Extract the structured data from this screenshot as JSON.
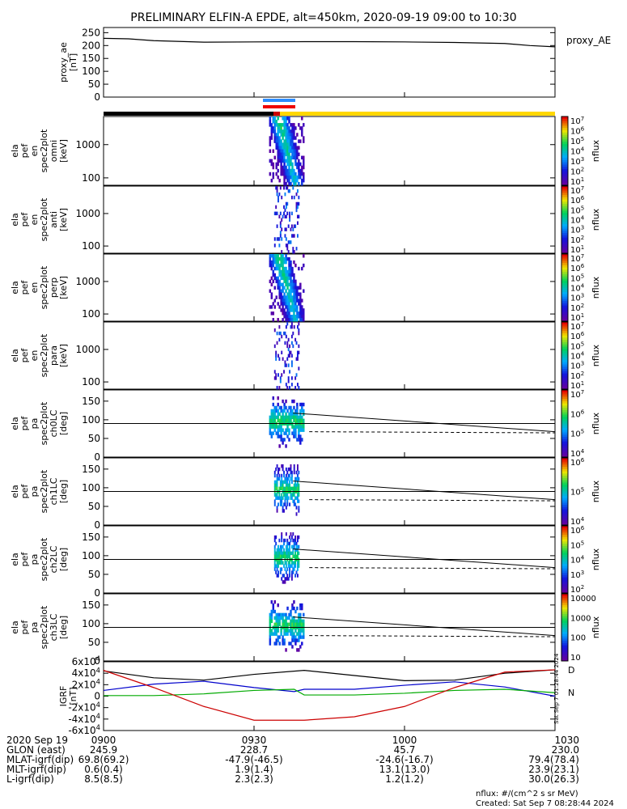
{
  "title": "PRELIMINARY ELFIN-A EPDE, alt=450km, 2020-09-19 09:00 to 10:30",
  "x_axis": {
    "date": "2020 Sep 19",
    "ticks": [
      "0900",
      "0930",
      "1000",
      "1030"
    ],
    "rows": [
      {
        "label": "GLON (east)",
        "values": [
          "245.9",
          "228.7",
          "45.7",
          "230.0"
        ]
      },
      {
        "label": "MLAT-igrf(dip)",
        "values": [
          "69.8(69.2)",
          "-47.9(-46.5)",
          "-24.6(-16.7)",
          "79.4(78.4)"
        ]
      },
      {
        "label": "MLT-igrf(dip)",
        "values": [
          "0.6(0.4)",
          "1.9(1.4)",
          "13.1(13.0)",
          "23.9(23.1)"
        ]
      },
      {
        "label": "L-igrf(dip)",
        "values": [
          "8.5(8.5)",
          "2.3(2.3)",
          "1.2(1.2)",
          "30.0(26.3)"
        ]
      }
    ]
  },
  "footer": {
    "units": "nflux: #/(cm^2 s sr MeV)",
    "created": "Created: Sat Sep  7 08:28:44 2024",
    "side_stamp": "Sat Sep  7 01:28:44 2024"
  },
  "chart_data": [
    {
      "type": "line",
      "ylabel": [
        "proxy_ae",
        "[nT]"
      ],
      "legend": "proxy_AE",
      "yticks": [
        "250",
        "200",
        "150",
        "100",
        "50",
        "0"
      ],
      "ylim": [
        0,
        270
      ],
      "series": [
        {
          "name": "proxy_AE",
          "color": "#000000",
          "x": [
            0,
            5,
            10,
            20,
            30,
            40,
            50,
            60,
            70,
            80,
            85,
            90
          ],
          "values": [
            228,
            226,
            219,
            213,
            214,
            215,
            215,
            214,
            212,
            208,
            200,
            195
          ]
        }
      ]
    },
    {
      "type": "bar",
      "ylabel": [
        "ela",
        "pef",
        "en",
        "spec2plot",
        "omni",
        "[keV]"
      ],
      "yticks": [
        "1000",
        "100"
      ],
      "ylim": [
        60,
        7000
      ],
      "colorbar": {
        "label": "nflux",
        "ticks": [
          "10^7",
          "10^6",
          "10^5",
          "10^4",
          "10^3",
          "10^2",
          "10^1"
        ]
      },
      "activity": {
        "x_minutes": [
          33,
          40
        ],
        "peak": "intense"
      }
    },
    {
      "type": "bar",
      "ylabel": [
        "ela",
        "pef",
        "en",
        "spec2plot",
        "anti",
        "[keV]"
      ],
      "yticks": [
        "1000",
        "100"
      ],
      "ylim": [
        60,
        7000
      ],
      "colorbar": {
        "label": "nflux",
        "ticks": [
          "10^7",
          "10^6",
          "10^5",
          "10^4",
          "10^3",
          "10^2",
          "10^1"
        ]
      },
      "activity": {
        "x_minutes": [
          34,
          39
        ],
        "peak": "weak"
      }
    },
    {
      "type": "bar",
      "ylabel": [
        "ela",
        "pef",
        "en",
        "spec2plot",
        "perp",
        "[keV]"
      ],
      "yticks": [
        "1000",
        "100"
      ],
      "ylim": [
        60,
        7000
      ],
      "colorbar": {
        "label": "nflux",
        "ticks": [
          "10^7",
          "10^6",
          "10^5",
          "10^4",
          "10^3",
          "10^2",
          "10^1"
        ]
      },
      "activity": {
        "x_minutes": [
          33,
          40
        ],
        "peak": "intense"
      }
    },
    {
      "type": "bar",
      "ylabel": [
        "ela",
        "pef",
        "en",
        "spec2plot",
        "para",
        "[keV]"
      ],
      "yticks": [
        "1000",
        "100"
      ],
      "ylim": [
        60,
        7000
      ],
      "colorbar": {
        "label": "nflux",
        "ticks": [
          "10^7",
          "10^6",
          "10^5",
          "10^4",
          "10^3",
          "10^2",
          "10^1"
        ]
      },
      "activity": {
        "x_minutes": [
          34,
          39
        ],
        "peak": "weak"
      }
    },
    {
      "type": "bar",
      "ylabel": [
        "ela",
        "pef",
        "pa",
        "spec2plot",
        "ch0LC",
        "[deg]"
      ],
      "yticks": [
        "150",
        "100",
        "50",
        "0"
      ],
      "ylim": [
        0,
        180
      ],
      "colorbar": {
        "label": "nflux",
        "ticks": [
          "10^7",
          "10^6",
          "10^5",
          "10^4"
        ]
      },
      "lines": {
        "lc_start": 118,
        "lc_end": 68,
        "alc_start": 68,
        "alc_end": 65,
        "ref": 90
      },
      "activity": {
        "x_minutes": [
          33,
          40
        ],
        "peak": "intense"
      }
    },
    {
      "type": "bar",
      "ylabel": [
        "ela",
        "pef",
        "pa",
        "spec2plot",
        "ch1LC",
        "[deg]"
      ],
      "yticks": [
        "150",
        "100",
        "50",
        "0"
      ],
      "ylim": [
        0,
        180
      ],
      "colorbar": {
        "label": "nflux",
        "ticks": [
          "10^6",
          "10^5",
          "10^4"
        ]
      },
      "lines": {
        "lc_start": 118,
        "lc_end": 68,
        "alc_start": 68,
        "alc_end": 65,
        "ref": 90
      },
      "activity": {
        "x_minutes": [
          34,
          39
        ],
        "peak": "intense"
      }
    },
    {
      "type": "bar",
      "ylabel": [
        "ela",
        "pef",
        "pa",
        "spec2plot",
        "ch2LC",
        "[deg]"
      ],
      "yticks": [
        "150",
        "100",
        "50",
        "0"
      ],
      "ylim": [
        0,
        180
      ],
      "colorbar": {
        "label": "nflux",
        "ticks": [
          "10^6",
          "10^5",
          "10^4",
          "10^3",
          "10^2"
        ]
      },
      "lines": {
        "lc_start": 118,
        "lc_end": 68,
        "alc_start": 68,
        "alc_end": 65,
        "ref": 90
      },
      "activity": {
        "x_minutes": [
          34,
          39
        ],
        "peak": "intense"
      }
    },
    {
      "type": "bar",
      "ylabel": [
        "ela",
        "pef",
        "pa",
        "spec2plot",
        "ch3LC",
        "[deg]"
      ],
      "yticks": [
        "150",
        "100",
        "50",
        "0"
      ],
      "ylim": [
        0,
        180
      ],
      "colorbar": {
        "label": "nflux",
        "ticks": [
          "10000",
          "1000",
          "100",
          "10"
        ]
      },
      "lines": {
        "lc_start": 118,
        "lc_end": 68,
        "alc_start": 68,
        "alc_end": 65,
        "ref": 90
      },
      "activity": {
        "x_minutes": [
          33,
          40
        ],
        "peak": "intense"
      }
    },
    {
      "type": "line",
      "ylabel": [
        "IGRF",
        "[nT]"
      ],
      "yticks": [
        "6x10^4",
        "4x10^4",
        "2x10^4",
        "0",
        "-2x10^4",
        "-4x10^4",
        "-6x10^4"
      ],
      "ylim": [
        -60000,
        60000
      ],
      "legend_labels": [
        "D",
        "N"
      ],
      "series": [
        {
          "name": "black",
          "color": "#000000",
          "x": [
            0,
            10,
            20,
            30,
            40,
            50,
            60,
            70,
            80,
            90
          ],
          "values": [
            44000,
            32000,
            28000,
            38000,
            45000,
            36000,
            27000,
            28000,
            40000,
            46000
          ]
        },
        {
          "name": "blue",
          "color": "#0000cc",
          "x": [
            0,
            10,
            20,
            30,
            38,
            40,
            50,
            60,
            70,
            80,
            90
          ],
          "values": [
            10000,
            21000,
            26000,
            15000,
            8000,
            12000,
            12000,
            19000,
            25000,
            16000,
            0
          ]
        },
        {
          "name": "green",
          "color": "#00aa00",
          "x": [
            0,
            10,
            20,
            30,
            38,
            40,
            50,
            60,
            70,
            80,
            90
          ],
          "values": [
            1000,
            1000,
            4000,
            10000,
            12000,
            2000,
            2000,
            5000,
            10000,
            12000,
            6000
          ]
        },
        {
          "name": "D",
          "color": "#cc0000",
          "x": [
            0,
            10,
            20,
            30,
            40,
            50,
            60,
            70,
            80,
            90
          ],
          "values": [
            45000,
            15000,
            -18000,
            -42000,
            -42000,
            -36000,
            -18000,
            15000,
            42000,
            46000
          ]
        }
      ]
    }
  ]
}
